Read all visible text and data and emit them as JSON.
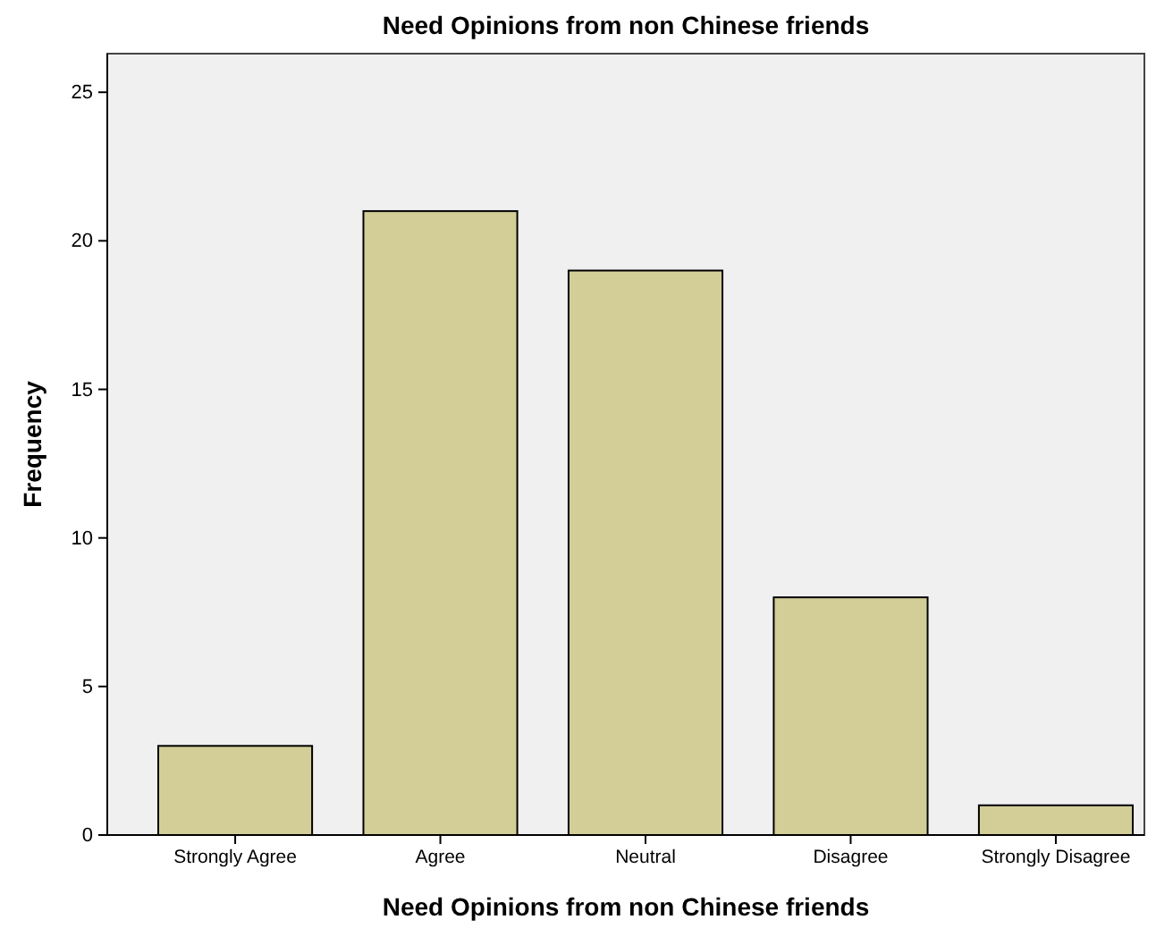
{
  "chart_data": {
    "type": "bar",
    "title": "Need Opinions from non Chinese friends",
    "xlabel": "Need Opinions from non Chinese friends",
    "ylabel": "Frequency",
    "categories": [
      "Strongly Agree",
      "Agree",
      "Neutral",
      "Disagree",
      "Strongly Disagree"
    ],
    "values": [
      3,
      21,
      19,
      8,
      1
    ],
    "color": "#d3ce97",
    "ylim": [
      0,
      26.3
    ],
    "yticks": [
      0,
      5,
      10,
      15,
      20,
      25
    ],
    "grid": false
  }
}
